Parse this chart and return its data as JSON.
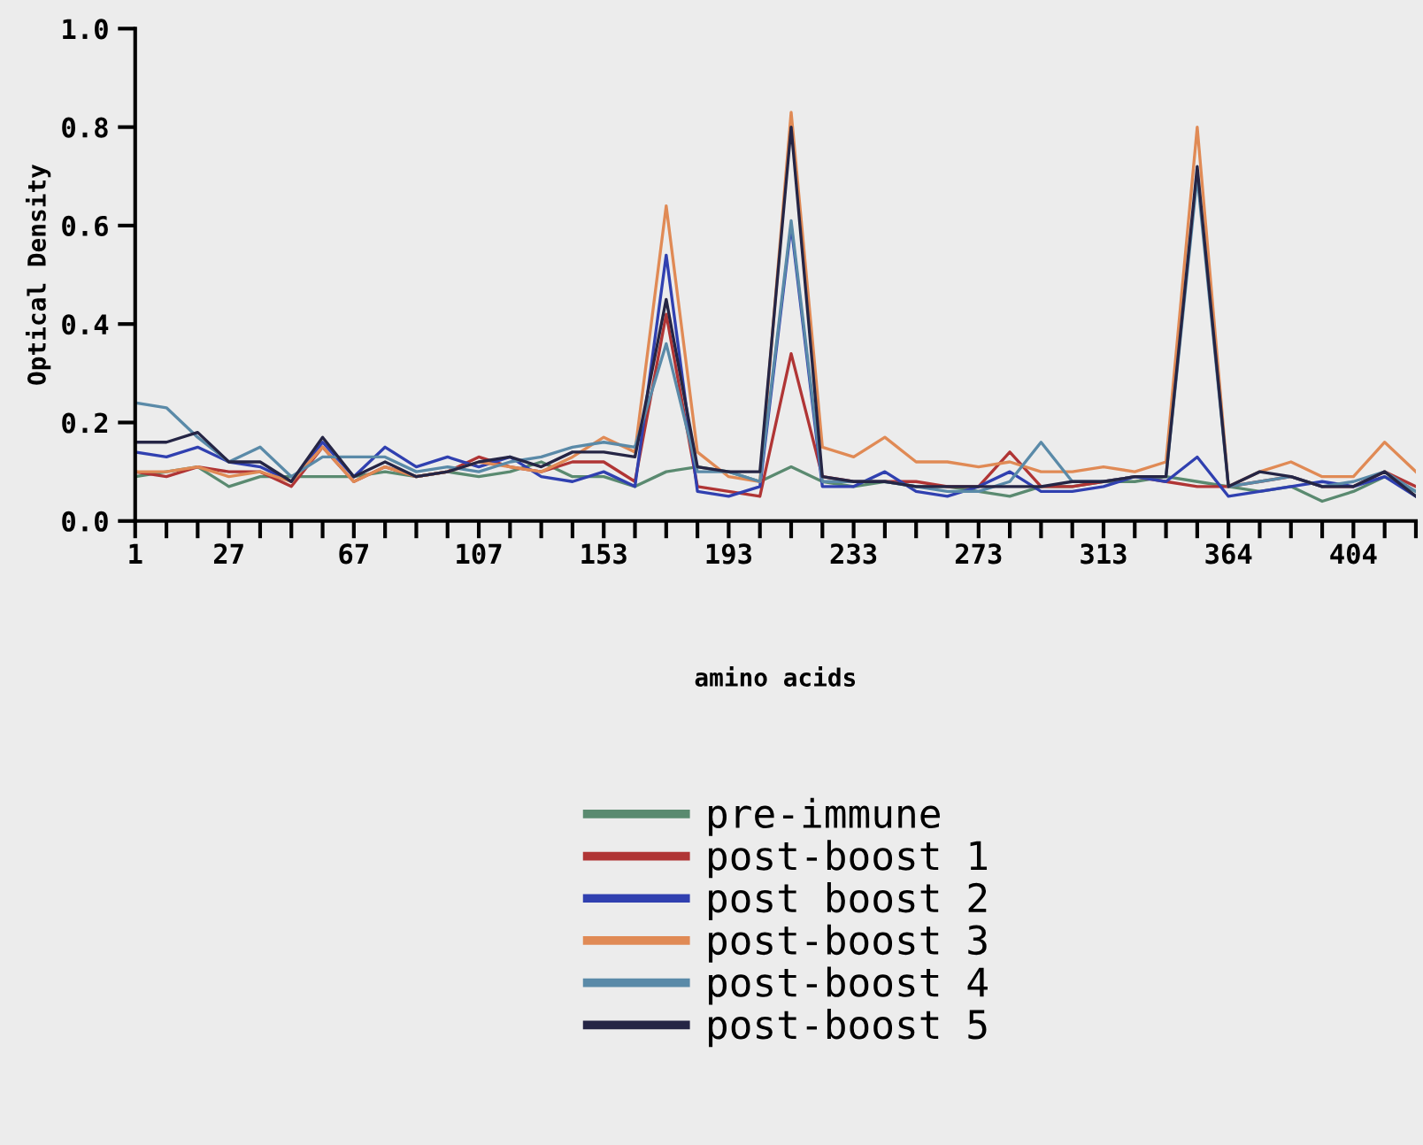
{
  "chart_data": {
    "type": "line",
    "xlabel": "amino acids",
    "ylabel": "Optical Density",
    "categories": [
      "1",
      null,
      null,
      "27",
      null,
      null,
      null,
      "67",
      null,
      null,
      null,
      "107",
      null,
      null,
      null,
      "153",
      null,
      null,
      null,
      "193",
      null,
      null,
      null,
      "233",
      null,
      null,
      null,
      "273",
      null,
      null,
      null,
      "313",
      null,
      null,
      null,
      "364",
      null,
      null,
      null,
      "404",
      null,
      null
    ],
    "ylim": [
      0,
      1.0
    ],
    "yticks": [
      {
        "value": 0,
        "label": "0.0"
      },
      {
        "value": 0.2,
        "label": "0.2"
      },
      {
        "value": 0.4,
        "label": "0.4"
      },
      {
        "value": 0.6,
        "label": "0.6"
      },
      {
        "value": 0.8,
        "label": "0.8"
      },
      {
        "value": 1.0,
        "label": "1.0"
      }
    ],
    "grid": false,
    "legend": "bottom",
    "marker": "none",
    "line_style": "solid",
    "series": [
      {
        "name": "pre-immune",
        "color": "#5a8a70",
        "values": [
          0.09,
          0.1,
          0.11,
          0.07,
          0.09,
          0.09,
          0.09,
          0.09,
          0.1,
          0.09,
          0.1,
          0.09,
          0.1,
          0.12,
          0.09,
          0.09,
          0.07,
          0.1,
          0.11,
          0.1,
          0.08,
          0.11,
          0.08,
          0.07,
          0.08,
          0.07,
          0.07,
          0.06,
          0.05,
          0.07,
          0.07,
          0.08,
          0.08,
          0.09,
          0.08,
          0.07,
          0.06,
          0.07,
          0.04,
          0.06,
          0.09,
          0.06
        ]
      },
      {
        "name": "post-boost 1",
        "color": "#b03535",
        "values": [
          0.1,
          0.09,
          0.11,
          0.1,
          0.1,
          0.07,
          0.15,
          0.08,
          0.11,
          0.09,
          0.1,
          0.13,
          0.11,
          0.1,
          0.12,
          0.12,
          0.08,
          0.42,
          0.07,
          0.06,
          0.05,
          0.34,
          0.09,
          0.08,
          0.08,
          0.08,
          0.07,
          0.07,
          0.14,
          0.07,
          0.07,
          0.08,
          0.09,
          0.08,
          0.07,
          0.07,
          0.08,
          0.09,
          0.07,
          0.07,
          0.1,
          0.07
        ]
      },
      {
        "name": "post boost 2",
        "color": "#3040b0",
        "values": [
          0.14,
          0.13,
          0.15,
          0.12,
          0.11,
          0.08,
          0.16,
          0.09,
          0.15,
          0.11,
          0.13,
          0.11,
          0.13,
          0.09,
          0.08,
          0.1,
          0.07,
          0.54,
          0.06,
          0.05,
          0.07,
          0.6,
          0.07,
          0.07,
          0.1,
          0.06,
          0.05,
          0.07,
          0.1,
          0.06,
          0.06,
          0.07,
          0.09,
          0.08,
          0.13,
          0.05,
          0.06,
          0.07,
          0.08,
          0.07,
          0.09,
          0.05
        ]
      },
      {
        "name": "post-boost 3",
        "color": "#e08a55",
        "values": [
          0.1,
          0.1,
          0.11,
          0.09,
          0.1,
          0.08,
          0.15,
          0.08,
          0.11,
          0.09,
          0.1,
          0.12,
          0.11,
          0.1,
          0.13,
          0.17,
          0.14,
          0.64,
          0.14,
          0.09,
          0.08,
          0.83,
          0.15,
          0.13,
          0.17,
          0.12,
          0.12,
          0.11,
          0.12,
          0.1,
          0.1,
          0.11,
          0.1,
          0.12,
          0.8,
          0.07,
          0.1,
          0.12,
          0.09,
          0.09,
          0.16,
          0.1
        ]
      },
      {
        "name": "post-boost 4",
        "color": "#5a8aa8",
        "values": [
          0.24,
          0.23,
          0.17,
          0.12,
          0.15,
          0.09,
          0.13,
          0.13,
          0.13,
          0.1,
          0.11,
          0.1,
          0.12,
          0.13,
          0.15,
          0.16,
          0.15,
          0.36,
          0.1,
          0.1,
          0.08,
          0.61,
          0.08,
          0.08,
          0.08,
          0.07,
          0.06,
          0.06,
          0.08,
          0.16,
          0.08,
          0.08,
          0.09,
          0.09,
          0.7,
          0.07,
          0.08,
          0.09,
          0.07,
          0.08,
          0.1,
          0.06
        ]
      },
      {
        "name": "post-boost 5",
        "color": "#252545",
        "values": [
          0.16,
          0.16,
          0.18,
          0.12,
          0.12,
          0.08,
          0.17,
          0.09,
          0.12,
          0.09,
          0.1,
          0.12,
          0.13,
          0.11,
          0.14,
          0.14,
          0.13,
          0.45,
          0.11,
          0.1,
          0.1,
          0.8,
          0.09,
          0.08,
          0.08,
          0.07,
          0.07,
          0.07,
          0.07,
          0.07,
          0.08,
          0.08,
          0.09,
          0.09,
          0.72,
          0.07,
          0.1,
          0.09,
          0.07,
          0.07,
          0.1,
          0.05
        ]
      }
    ]
  }
}
